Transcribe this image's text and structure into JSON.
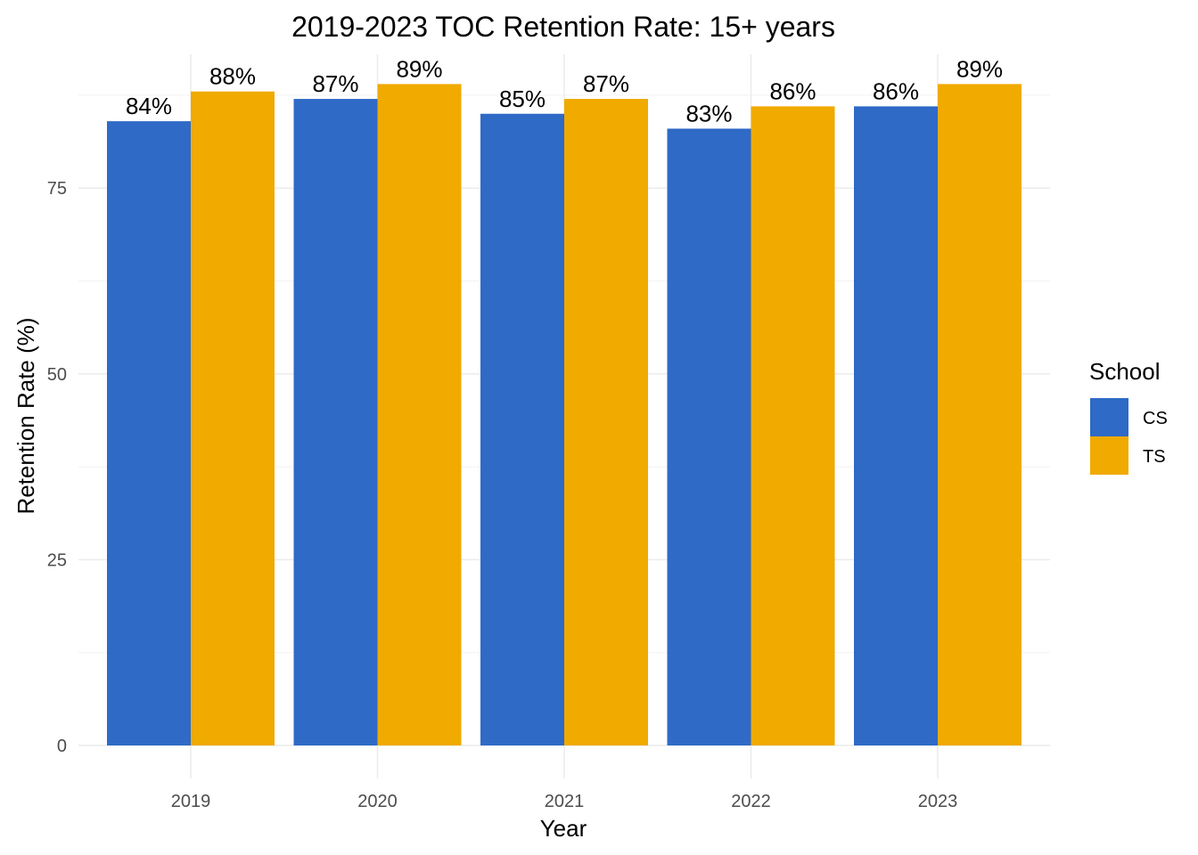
{
  "chart_data": {
    "type": "bar",
    "title": "2019-2023 TOC Retention Rate: 15+ years",
    "xlabel": "Year",
    "ylabel": "Retention Rate (%)",
    "categories": [
      "2019",
      "2020",
      "2021",
      "2022",
      "2023"
    ],
    "series": [
      {
        "name": "CS",
        "color": "#2e6ac6",
        "values": [
          84,
          87,
          85,
          83,
          86
        ],
        "labels": [
          "84%",
          "87%",
          "85%",
          "83%",
          "86%"
        ]
      },
      {
        "name": "TS",
        "color": "#f0aa00",
        "values": [
          88,
          89,
          87,
          86,
          89
        ],
        "labels": [
          "88%",
          "89%",
          "87%",
          "86%",
          "89%"
        ]
      }
    ],
    "ylim": [
      0,
      93
    ],
    "yticks": [
      0,
      25,
      50,
      75
    ],
    "ytick_labels": [
      "0",
      "25",
      "50",
      "75"
    ],
    "grid": true,
    "legend": {
      "title": "School",
      "position": "right"
    }
  }
}
